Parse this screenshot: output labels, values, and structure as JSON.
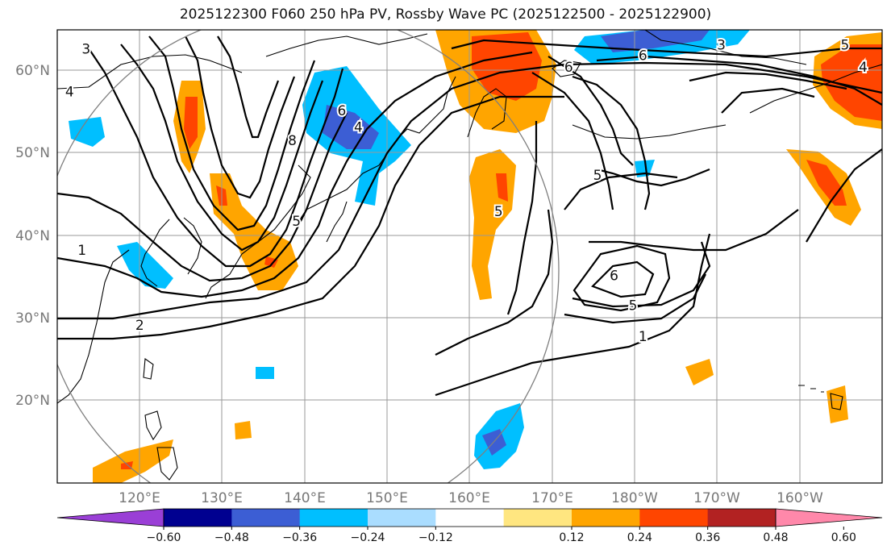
{
  "title": "2025122300 F060 250 hPa PV, Rossby Wave PC (2025122500 - 2025122900)",
  "colors": {
    "pos": [
      "#ffe680",
      "#ffa500",
      "#ff4500",
      "#b22222",
      "#ff88aa"
    ],
    "neg": [
      "#aaddff",
      "#00bfff",
      "#3c5ed4",
      "#000090",
      "#9a3fd6"
    ],
    "grid": "#999999",
    "circle": "#7f7f7f"
  },
  "chart_data": {
    "type": "map",
    "title": "2025122300 F060 250 hPa PV, Rossby Wave PC (2025122500 - 2025122900)",
    "lat_ticks": [
      "60°N",
      "50°N",
      "40°N",
      "30°N",
      "20°N"
    ],
    "lon_ticks": [
      "120°E",
      "130°E",
      "140°E",
      "150°E",
      "160°E",
      "170°E",
      "180°W",
      "170°W",
      "160°W"
    ],
    "lon_range": [
      110,
      210
    ],
    "lat_range": [
      10,
      65
    ],
    "colorbar": {
      "levels": [
        "−0.60",
        "−0.48",
        "−0.36",
        "−0.24",
        "−0.12",
        "0.12",
        "0.24",
        "0.36",
        "0.48",
        "0.60"
      ],
      "level_values": [
        -0.6,
        -0.48,
        -0.36,
        -0.24,
        -0.12,
        0.12,
        0.24,
        0.36,
        0.48,
        0.6
      ],
      "colors": [
        "#9a3fd6",
        "#000090",
        "#3c5ed4",
        "#00bfff",
        "#aaddff",
        "#ffffff",
        "#ffe680",
        "#ffa500",
        "#ff4500",
        "#b22222",
        "#ff88aa"
      ]
    },
    "contour_labels": [
      {
        "text": "3",
        "lon": 113.5,
        "lat": 62.7
      },
      {
        "text": "4",
        "lon": 111.5,
        "lat": 57.5
      },
      {
        "text": "1",
        "lon": 113,
        "lat": 38.3
      },
      {
        "text": "2",
        "lon": 120,
        "lat": 29.2
      },
      {
        "text": "8",
        "lon": 138.5,
        "lat": 51.6
      },
      {
        "text": "6",
        "lon": 144.5,
        "lat": 55.2
      },
      {
        "text": "4",
        "lon": 146.5,
        "lat": 53.2
      },
      {
        "text": "5",
        "lon": 139,
        "lat": 41.8
      },
      {
        "text": "5",
        "lon": 163.5,
        "lat": 43
      },
      {
        "text": "6",
        "lon": 172,
        "lat": 60.5
      },
      {
        "text": "6",
        "lon": 181,
        "lat": 61.9
      },
      {
        "text": "3",
        "lon": 190.5,
        "lat": 63.2
      },
      {
        "text": "4",
        "lon": 207.7,
        "lat": 60.5
      },
      {
        "text": "5",
        "lon": 205.5,
        "lat": 63.2
      },
      {
        "text": "5",
        "lon": 175.5,
        "lat": 47.4
      },
      {
        "text": "6",
        "lon": 177.5,
        "lat": 35.2
      },
      {
        "text": "5",
        "lon": 179.8,
        "lat": 31.6
      },
      {
        "text": "1",
        "lon": 181,
        "lat": 27.8
      }
    ]
  }
}
